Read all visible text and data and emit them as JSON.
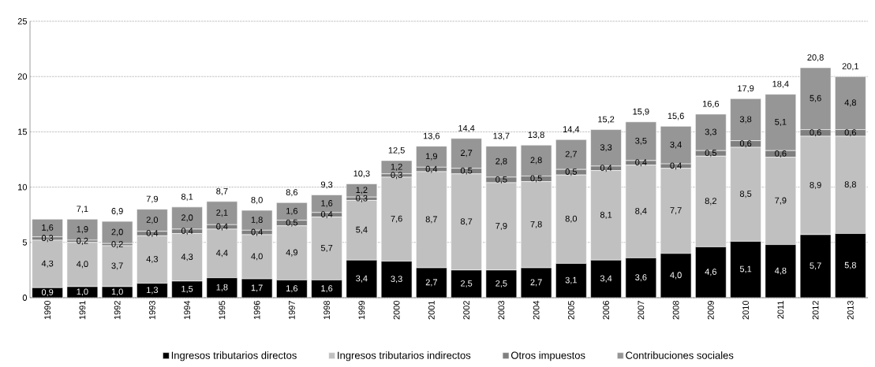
{
  "chart_data": {
    "type": "bar",
    "stacked": true,
    "categories": [
      "1990",
      "1991",
      "1992",
      "1993",
      "1994",
      "1995",
      "1996",
      "1997",
      "1998",
      "1999",
      "2000",
      "2001",
      "2002",
      "2003",
      "2004",
      "2005",
      "2006",
      "2007",
      "2008",
      "2009",
      "2010",
      "2011",
      "2012",
      "2013"
    ],
    "series": [
      {
        "name": "Ingresos tributarios directos",
        "color": "#000000",
        "values": [
          0.9,
          1.0,
          1.0,
          1.3,
          1.5,
          1.8,
          1.7,
          1.6,
          1.6,
          3.4,
          3.3,
          2.7,
          2.5,
          2.5,
          2.7,
          3.1,
          3.4,
          3.6,
          4.0,
          4.6,
          5.1,
          4.8,
          5.7,
          5.8
        ],
        "value_labels": [
          "0,9",
          "1,0",
          "1,0",
          "1,3",
          "1,5",
          "1,8",
          "1,7",
          "1,6",
          "1,6",
          "3,4",
          "3,3",
          "2,7",
          "2,5",
          "2,5",
          "2,7",
          "3,1",
          "3,4",
          "3,6",
          "4,0",
          "4,6",
          "5,1",
          "4,8",
          "5,7",
          "5,8"
        ]
      },
      {
        "name": "Ingresos tributarios indirectos",
        "color": "#c0c0c0",
        "values": [
          4.3,
          4.0,
          3.7,
          4.3,
          4.3,
          4.4,
          4.0,
          4.9,
          5.7,
          5.4,
          7.6,
          8.7,
          8.7,
          7.9,
          7.8,
          8.0,
          8.1,
          8.4,
          7.7,
          8.2,
          8.5,
          7.9,
          8.9,
          8.8
        ],
        "value_labels": [
          "4,3",
          "4,0",
          "3,7",
          "4,3",
          "4,3",
          "4,4",
          "4,0",
          "4,9",
          "5,7",
          "5,4",
          "7,6",
          "8,7",
          "8,7",
          "7,9",
          "7,8",
          "8,0",
          "8,1",
          "8,4",
          "7,7",
          "8,2",
          "8,5",
          "7,9",
          "8,9",
          "8,8"
        ]
      },
      {
        "name": "Otros impuestos",
        "color": "#808080",
        "values": [
          0.3,
          0.2,
          0.2,
          0.4,
          0.4,
          0.4,
          0.4,
          0.5,
          0.4,
          0.3,
          0.3,
          0.4,
          0.5,
          0.5,
          0.5,
          0.5,
          0.4,
          0.4,
          0.4,
          0.5,
          0.6,
          0.6,
          0.6,
          0.6
        ],
        "value_labels": [
          "0,3",
          "0,2",
          "0,2",
          "0,4",
          "0,4",
          "0,4",
          "0,4",
          "0,5",
          "0,4",
          "0,3",
          "0,3",
          "0,4",
          "0,5",
          "0,5",
          "0,5",
          "0,5",
          "0,4",
          "0,4",
          "0,4",
          "0,5",
          "0,6",
          "0,6",
          "0,6",
          "0,6"
        ]
      },
      {
        "name": "Contribuciones sociales",
        "color": "#969696",
        "values": [
          1.6,
          1.9,
          2.0,
          2.0,
          2.0,
          2.1,
          1.8,
          1.6,
          1.6,
          1.2,
          1.2,
          1.9,
          2.7,
          2.8,
          2.8,
          2.7,
          3.3,
          3.5,
          3.4,
          3.3,
          3.8,
          5.1,
          5.6,
          4.8
        ],
        "value_labels": [
          "1,6",
          "1,9",
          "2,0",
          "2,0",
          "2,0",
          "2,1",
          "1,8",
          "1,6",
          "1,6",
          "1,2",
          "1,2",
          "1,9",
          "2,7",
          "2,8",
          "2,8",
          "2,7",
          "3,3",
          "3,5",
          "3,4",
          "3,3",
          "3,8",
          "5,1",
          "5,6",
          "4,8"
        ]
      }
    ],
    "totals": [
      null,
      "7,1",
      "6,9",
      "7,9",
      "8,1",
      "8,7",
      "8,0",
      "8,6",
      "9,3",
      "10,3",
      "12,5",
      "13,6",
      "14,4",
      "13,7",
      "13,8",
      "14,4",
      "15,2",
      "15,9",
      "15,6",
      "16,6",
      "17,9",
      "18,4",
      "20,8",
      "20,1"
    ],
    "ylim": [
      0,
      25
    ],
    "yticks": [
      0,
      5,
      10,
      15,
      20,
      25
    ],
    "grid": "y",
    "legend": "bottom"
  }
}
